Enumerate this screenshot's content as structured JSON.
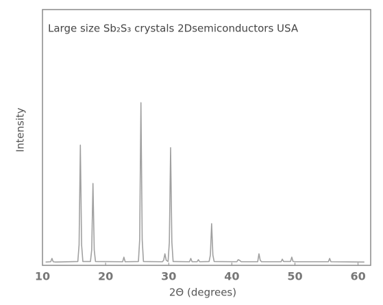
{
  "chart_data": {
    "type": "line",
    "title": "Large size Sb₂S₃ crystals  2Dsemiconductors USA",
    "xlabel": "2Θ (degrees)",
    "ylabel": "Intensity",
    "x": [
      10.5,
      11.3,
      11.5,
      11.7,
      12,
      15.6,
      15.8,
      16,
      16.2,
      16.4,
      17.6,
      17.8,
      18,
      18.2,
      18.4,
      22.7,
      22.9,
      23.1,
      25.2,
      25.4,
      25.6,
      25.8,
      26,
      29,
      29.2,
      29.4,
      29.6,
      29.9,
      30.1,
      30.3,
      30.5,
      30.7,
      33.3,
      33.5,
      33.7,
      34.5,
      34.7,
      34.9,
      36.4,
      36.6,
      36.8,
      37,
      37.2,
      40.8,
      41,
      41.2,
      41.5,
      44.1,
      44.3,
      44.5,
      44.7,
      47.8,
      48,
      48.2,
      49.3,
      49.5,
      49.7,
      50.2,
      55.3,
      55.5,
      55.7,
      61
    ],
    "series": [
      {
        "color": "#a0a0a0",
        "values": [
          1.3,
          1.4,
          2.7,
          1.4,
          1.3,
          1.5,
          8,
          47,
          8,
          1.5,
          1.5,
          6,
          32,
          6,
          1.5,
          1.4,
          3.2,
          1.4,
          1.5,
          10,
          63.6,
          10,
          1.5,
          1.4,
          2,
          4.5,
          2,
          1.5,
          9,
          46,
          9,
          1.5,
          1.4,
          2.7,
          1.4,
          1.4,
          2.2,
          1.4,
          1.5,
          4,
          16.3,
          4,
          1.5,
          1.4,
          2.2,
          2,
          1.4,
          1.4,
          4.5,
          2,
          1.4,
          1.4,
          2.4,
          1.5,
          1.5,
          3.2,
          1.5,
          1.4,
          1.4,
          2.7,
          1.4,
          1.3
        ]
      }
    ],
    "xlim": [
      10,
      62
    ],
    "xticks": [
      10,
      20,
      30,
      40,
      50,
      60
    ],
    "ylim": [
      0,
      100
    ]
  }
}
